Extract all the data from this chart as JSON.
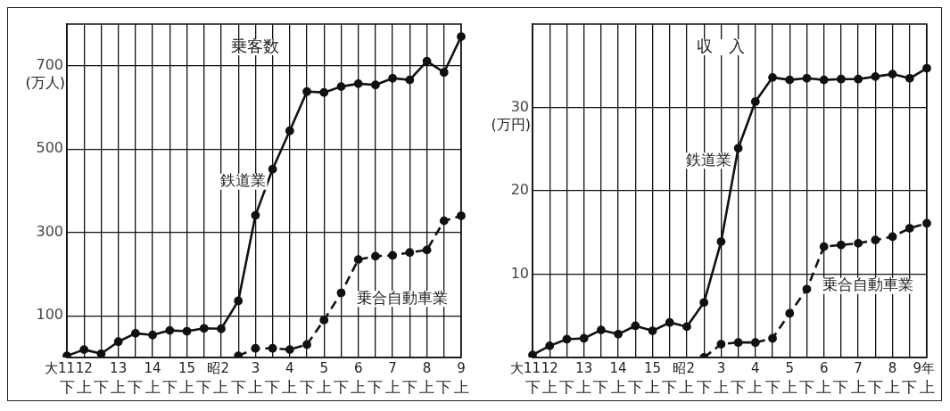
{
  "chart_data": [
    {
      "type": "line",
      "title": "乗客数",
      "ylabel": "(万人)",
      "categories": [
        "大11下",
        "12上",
        "下",
        "13上",
        "下",
        "14上",
        "下",
        "15上",
        "下",
        "昭2上",
        "下",
        "3上",
        "下",
        "4上",
        "下",
        "5上",
        "下",
        "6上",
        "下",
        "7上",
        "下",
        "8上",
        "下",
        "9上"
      ],
      "series": [
        {
          "name": "鉄道業",
          "color": "#111111",
          "line_style": "solid",
          "values": [
            4,
            19,
            9,
            38,
            58,
            54,
            65,
            63,
            70,
            69,
            136,
            341,
            452,
            544,
            638,
            636,
            650,
            657,
            654,
            670,
            666,
            711,
            684,
            770
          ]
        },
        {
          "name": "乗合自動車業",
          "color": "#111111",
          "line_style": "dashed",
          "values": [
            null,
            null,
            null,
            null,
            null,
            null,
            null,
            null,
            null,
            null,
            4,
            22,
            22,
            19,
            31,
            90,
            155,
            235,
            243,
            245,
            252,
            258,
            328,
            340
          ]
        }
      ],
      "ylim": [
        0,
        800
      ],
      "yticks": [
        100,
        300,
        500,
        700
      ],
      "grid": true,
      "marker": "circle"
    },
    {
      "type": "line",
      "title": "収　入",
      "ylabel": "(万円)",
      "categories": [
        "大11下",
        "12上",
        "下",
        "13上",
        "下",
        "14上",
        "下",
        "15上",
        "下",
        "昭2上",
        "下",
        "3上",
        "下",
        "4上",
        "下",
        "5上",
        "下",
        "6上",
        "下",
        "7上",
        "下",
        "8上",
        "下",
        "9年上"
      ],
      "series": [
        {
          "name": "鉄道業",
          "color": "#111111",
          "line_style": "solid",
          "values": [
            0.3,
            1.4,
            2.2,
            2.3,
            3.3,
            2.8,
            3.8,
            3.2,
            4.2,
            3.7,
            6.6,
            13.9,
            25.1,
            30.7,
            33.6,
            33.3,
            33.5,
            33.3,
            33.4,
            33.4,
            33.7,
            34.0,
            33.5,
            34.7
          ]
        },
        {
          "name": "乗合自動車業",
          "color": "#111111",
          "line_style": "dashed",
          "values": [
            null,
            null,
            null,
            null,
            null,
            null,
            null,
            null,
            null,
            null,
            0,
            1.6,
            1.8,
            1.8,
            2.3,
            5.3,
            8.2,
            13.3,
            13.5,
            13.7,
            14.1,
            14.5,
            15.5,
            16.1
          ]
        }
      ],
      "ylim": [
        0,
        40
      ],
      "yticks": [
        10,
        20,
        30
      ],
      "grid": true,
      "marker": "circle"
    }
  ]
}
